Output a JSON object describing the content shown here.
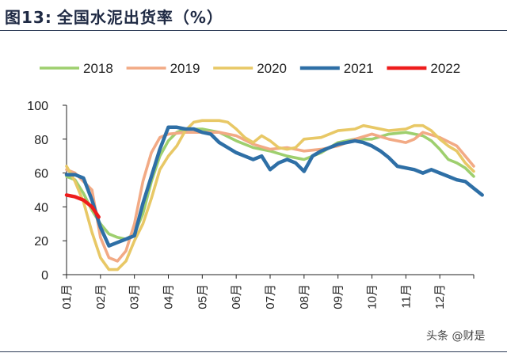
{
  "header": {
    "figure_label": "图13:",
    "title": "全国水泥出货率（%）"
  },
  "watermark": "头条 @财是",
  "chart_data": {
    "type": "line",
    "title": "全国水泥出货率（%）",
    "xlabel": "",
    "ylabel": "",
    "ylim": [
      0,
      100
    ],
    "yticks": [
      0,
      20,
      40,
      60,
      80,
      100
    ],
    "xlim": [
      1,
      13
    ],
    "month_ticks": [
      "01月",
      "02月",
      "03月",
      "04月",
      "05月",
      "06月",
      "07月",
      "08月",
      "09月",
      "10月",
      "11月",
      "12月"
    ],
    "grid": false,
    "legend_position": "top",
    "series": [
      {
        "name": "2018",
        "color": "#9ecf6e",
        "points": [
          [
            1.0,
            58
          ],
          [
            1.25,
            56
          ],
          [
            1.5,
            48
          ],
          [
            1.75,
            38
          ],
          [
            2.0,
            30
          ],
          [
            2.25,
            24
          ],
          [
            2.5,
            22
          ],
          [
            2.75,
            21
          ],
          [
            3.0,
            24
          ],
          [
            3.25,
            36
          ],
          [
            3.5,
            55
          ],
          [
            3.75,
            70
          ],
          [
            4.0,
            79
          ],
          [
            4.25,
            84
          ],
          [
            4.5,
            86
          ],
          [
            5.0,
            86
          ],
          [
            5.5,
            84
          ],
          [
            6.0,
            79
          ],
          [
            6.5,
            75
          ],
          [
            7.0,
            73
          ],
          [
            7.5,
            70
          ],
          [
            8.0,
            68
          ],
          [
            8.5,
            72
          ],
          [
            9.0,
            78
          ],
          [
            9.5,
            80
          ],
          [
            10.0,
            80
          ],
          [
            10.5,
            83
          ],
          [
            11.0,
            84
          ],
          [
            11.5,
            82
          ],
          [
            11.75,
            79
          ],
          [
            12.0,
            74
          ],
          [
            12.25,
            68
          ],
          [
            12.5,
            66
          ],
          [
            12.75,
            63
          ],
          [
            13.0,
            58
          ]
        ]
      },
      {
        "name": "2019",
        "color": "#f2aa85",
        "points": [
          [
            1.0,
            62
          ],
          [
            1.25,
            60
          ],
          [
            1.5,
            55
          ],
          [
            1.75,
            50
          ],
          [
            2.0,
            22
          ],
          [
            2.25,
            10
          ],
          [
            2.5,
            8
          ],
          [
            2.75,
            14
          ],
          [
            3.0,
            30
          ],
          [
            3.25,
            55
          ],
          [
            3.5,
            72
          ],
          [
            3.75,
            81
          ],
          [
            4.0,
            83
          ],
          [
            4.5,
            84
          ],
          [
            5.0,
            84
          ],
          [
            5.5,
            84
          ],
          [
            6.0,
            82
          ],
          [
            6.5,
            77
          ],
          [
            7.0,
            74
          ],
          [
            7.5,
            75
          ],
          [
            8.0,
            73
          ],
          [
            8.5,
            74
          ],
          [
            9.0,
            76
          ],
          [
            9.5,
            80
          ],
          [
            10.0,
            83
          ],
          [
            10.5,
            80
          ],
          [
            11.0,
            78
          ],
          [
            11.25,
            80
          ],
          [
            11.5,
            84
          ],
          [
            12.0,
            81
          ],
          [
            12.5,
            76
          ],
          [
            12.75,
            70
          ],
          [
            13.0,
            64
          ]
        ]
      },
      {
        "name": "2020",
        "color": "#e8c866",
        "points": [
          [
            1.0,
            64
          ],
          [
            1.25,
            55
          ],
          [
            1.5,
            43
          ],
          [
            1.75,
            25
          ],
          [
            2.0,
            10
          ],
          [
            2.25,
            3
          ],
          [
            2.5,
            3
          ],
          [
            2.75,
            8
          ],
          [
            3.0,
            20
          ],
          [
            3.25,
            30
          ],
          [
            3.5,
            45
          ],
          [
            3.75,
            62
          ],
          [
            4.0,
            70
          ],
          [
            4.25,
            76
          ],
          [
            4.5,
            85
          ],
          [
            4.75,
            90
          ],
          [
            5.0,
            91
          ],
          [
            5.25,
            91
          ],
          [
            5.5,
            91
          ],
          [
            5.75,
            90
          ],
          [
            6.0,
            86
          ],
          [
            6.25,
            81
          ],
          [
            6.5,
            78
          ],
          [
            6.75,
            82
          ],
          [
            7.0,
            79
          ],
          [
            7.25,
            75
          ],
          [
            7.5,
            74
          ],
          [
            7.75,
            75
          ],
          [
            8.0,
            80
          ],
          [
            8.5,
            81
          ],
          [
            9.0,
            85
          ],
          [
            9.5,
            86
          ],
          [
            9.75,
            88
          ],
          [
            10.0,
            87
          ],
          [
            10.5,
            85
          ],
          [
            11.0,
            86
          ],
          [
            11.25,
            88
          ],
          [
            11.5,
            88
          ],
          [
            11.75,
            85
          ],
          [
            12.0,
            80
          ],
          [
            12.25,
            76
          ],
          [
            12.5,
            73
          ],
          [
            12.75,
            66
          ],
          [
            13.0,
            61
          ]
        ]
      },
      {
        "name": "2021",
        "color": "#2e6fa6",
        "points": [
          [
            1.0,
            59
          ],
          [
            1.25,
            59
          ],
          [
            1.5,
            57
          ],
          [
            1.75,
            44
          ],
          [
            2.0,
            28
          ],
          [
            2.25,
            17
          ],
          [
            2.5,
            19
          ],
          [
            2.75,
            21
          ],
          [
            3.0,
            23
          ],
          [
            3.25,
            42
          ],
          [
            3.5,
            58
          ],
          [
            3.75,
            74
          ],
          [
            4.0,
            87
          ],
          [
            4.25,
            87
          ],
          [
            4.5,
            86
          ],
          [
            4.75,
            86
          ],
          [
            5.0,
            84
          ],
          [
            5.25,
            83
          ],
          [
            5.5,
            78
          ],
          [
            5.75,
            75
          ],
          [
            6.0,
            72
          ],
          [
            6.25,
            70
          ],
          [
            6.5,
            68
          ],
          [
            6.75,
            70
          ],
          [
            7.0,
            62
          ],
          [
            7.25,
            66
          ],
          [
            7.5,
            68
          ],
          [
            7.75,
            66
          ],
          [
            8.0,
            61
          ],
          [
            8.25,
            70
          ],
          [
            8.5,
            73
          ],
          [
            9.0,
            77
          ],
          [
            9.5,
            79
          ],
          [
            9.75,
            78
          ],
          [
            10.0,
            76
          ],
          [
            10.25,
            73
          ],
          [
            10.5,
            69
          ],
          [
            10.75,
            64
          ],
          [
            11.0,
            63
          ],
          [
            11.25,
            62
          ],
          [
            11.5,
            60
          ],
          [
            11.75,
            62
          ],
          [
            12.0,
            60
          ],
          [
            12.25,
            58
          ],
          [
            12.5,
            56
          ],
          [
            12.75,
            55
          ],
          [
            13.0,
            51
          ],
          [
            13.25,
            47
          ]
        ]
      },
      {
        "name": "2022",
        "color": "#ee1c1c",
        "points": [
          [
            1.0,
            47
          ],
          [
            1.25,
            46
          ],
          [
            1.5,
            44
          ],
          [
            1.75,
            40
          ],
          [
            1.95,
            34
          ]
        ]
      }
    ]
  }
}
